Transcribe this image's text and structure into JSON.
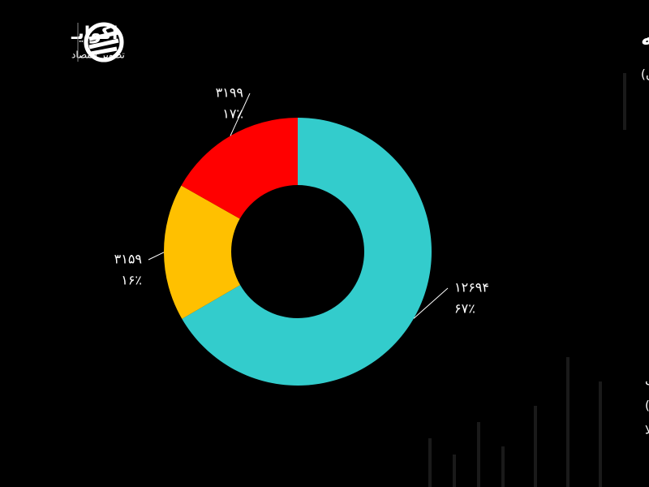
{
  "logo": {
    "name": "اکوایـ",
    "tagline": "تصویر اقتصاد"
  },
  "chart_data": {
    "type": "pie",
    "donut": true,
    "title": "ش معاملات بازار سرمایه",
    "subtitle": ": درصد- میلیارد تومان)",
    "categories": [
      "دوق‌های درآمد ثابت",
      "هام و حق تقدم (بدون احتساب صندوق‌های سهامی)",
      "دوق‌های طلا"
    ],
    "values": [
      12694,
      3159,
      3199
    ],
    "value_labels": [
      "۱۲۶۹۴",
      "۳۱۵۹",
      "۳۱۹۹"
    ],
    "percent_values": [
      67,
      16,
      17
    ],
    "percent_labels": [
      "۶۷٪",
      "۱۶٪",
      "۱۷٪"
    ],
    "colors": [
      "#33cccc",
      "#ffc000",
      "#ff0000"
    ]
  }
}
